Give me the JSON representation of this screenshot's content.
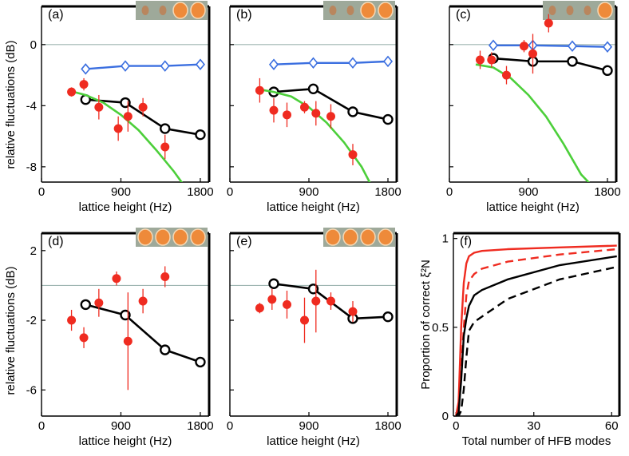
{
  "figure": {
    "ylabel_top": "relative fluctuations (dB)",
    "ylabel_bottom": "relative fluctuations (dB)"
  },
  "chart_data": [
    {
      "id": "a",
      "panel_label": "(a)",
      "type": "line",
      "xlabel": "lattice height (Hz)",
      "ylabel": "relative fluctuations (dB)",
      "xlim": [
        0,
        1900
      ],
      "ylim": [
        -9,
        2.5
      ],
      "xticks": [
        0,
        900,
        1800
      ],
      "xtick_labels": [
        "0",
        "900",
        "1800"
      ],
      "yticks": [
        0,
        -4,
        -8
      ],
      "ytick_labels": [
        "0",
        "-4",
        "-8"
      ],
      "zero_line": true,
      "inset": {
        "lobes": 4,
        "bright": [
          2,
          3
        ]
      },
      "series": [
        {
          "name": "blue diamonds",
          "color": "#3b6fe0",
          "marker": "diamond",
          "x": [
            500,
            950,
            1400,
            1800
          ],
          "y": [
            -1.6,
            -1.4,
            -1.4,
            -1.3
          ]
        },
        {
          "name": "black circles",
          "color": "#000000",
          "marker": "circle",
          "x": [
            500,
            950,
            1400,
            1800
          ],
          "y": [
            -3.6,
            -3.8,
            -5.5,
            -5.9
          ]
        },
        {
          "name": "green curve",
          "color": "#4ccf3a",
          "marker": "none",
          "x": [
            300,
            500,
            700,
            900,
            1100,
            1300,
            1500,
            1600
          ],
          "y": [
            -3.0,
            -3.3,
            -3.8,
            -4.6,
            -5.6,
            -6.9,
            -8.3,
            -9.1
          ]
        },
        {
          "name": "red data",
          "color": "#ef2b20",
          "marker": "errorbar",
          "x": [
            340,
            480,
            650,
            870,
            980,
            1150,
            1400
          ],
          "y": [
            -3.1,
            -2.6,
            -4.1,
            -5.5,
            -4.7,
            -4.1,
            -6.7
          ],
          "yerr": [
            0.3,
            0.4,
            0.8,
            0.8,
            1.0,
            0.6,
            0.8
          ]
        }
      ]
    },
    {
      "id": "b",
      "panel_label": "(b)",
      "type": "line",
      "xlabel": "lattice height (Hz)",
      "ylabel": "",
      "xlim": [
        0,
        1900
      ],
      "ylim": [
        -9,
        2.5
      ],
      "xticks": [
        0,
        900,
        1800
      ],
      "xtick_labels": [
        "0",
        "900",
        "1800"
      ],
      "yticks": [
        0,
        -4,
        -8
      ],
      "ytick_labels": [
        "",
        "",
        ""
      ],
      "zero_line": true,
      "inset": {
        "lobes": 4,
        "bright": [
          2,
          3
        ]
      },
      "series": [
        {
          "name": "blue diamonds",
          "color": "#3b6fe0",
          "marker": "diamond",
          "x": [
            500,
            950,
            1400,
            1800
          ],
          "y": [
            -1.3,
            -1.2,
            -1.2,
            -1.1
          ]
        },
        {
          "name": "black circles",
          "color": "#000000",
          "marker": "circle",
          "x": [
            500,
            950,
            1400,
            1800
          ],
          "y": [
            -3.1,
            -2.9,
            -4.4,
            -4.9
          ]
        },
        {
          "name": "green curve",
          "color": "#4ccf3a",
          "marker": "none",
          "x": [
            300,
            500,
            700,
            900,
            1100,
            1300,
            1500,
            1600
          ],
          "y": [
            -2.9,
            -3.1,
            -3.4,
            -4.1,
            -5.1,
            -6.4,
            -8.0,
            -9.1
          ]
        },
        {
          "name": "red data",
          "color": "#ef2b20",
          "marker": "errorbar",
          "x": [
            340,
            500,
            650,
            850,
            980,
            1150,
            1400
          ],
          "y": [
            -3.0,
            -4.3,
            -4.6,
            -4.1,
            -4.5,
            -4.7,
            -7.2
          ],
          "yerr": [
            0.8,
            0.8,
            0.8,
            0.4,
            0.8,
            0.8,
            0.7
          ]
        }
      ]
    },
    {
      "id": "c",
      "panel_label": "(c)",
      "type": "line",
      "xlabel": "lattice height (Hz)",
      "ylabel": "",
      "xlim": [
        0,
        1900
      ],
      "ylim": [
        -9,
        2.5
      ],
      "xticks": [
        0,
        900,
        1800
      ],
      "xtick_labels": [
        "0",
        "900",
        "1800"
      ],
      "yticks": [
        0,
        -4,
        -8
      ],
      "ytick_labels": [
        "",
        "",
        ""
      ],
      "zero_line": true,
      "inset": {
        "lobes": 4,
        "bright": [
          3
        ]
      },
      "series": [
        {
          "name": "blue diamonds",
          "color": "#3b6fe0",
          "marker": "diamond",
          "x": [
            500,
            950,
            1400,
            1800
          ],
          "y": [
            -0.05,
            -0.05,
            -0.1,
            -0.15
          ]
        },
        {
          "name": "black circles",
          "color": "#000000",
          "marker": "circle",
          "x": [
            500,
            950,
            1400,
            1800
          ],
          "y": [
            -0.9,
            -1.1,
            -1.1,
            -1.7
          ]
        },
        {
          "name": "green curve",
          "color": "#4ccf3a",
          "marker": "none",
          "x": [
            300,
            500,
            700,
            900,
            1100,
            1300,
            1500,
            1600
          ],
          "y": [
            -1.3,
            -1.5,
            -2.2,
            -3.3,
            -4.7,
            -6.5,
            -8.5,
            -9.1
          ]
        },
        {
          "name": "red data",
          "color": "#ef2b20",
          "marker": "errorbar",
          "x": [
            350,
            480,
            650,
            850,
            950,
            1130
          ],
          "y": [
            -1.0,
            -1.0,
            -2.0,
            -0.1,
            -0.6,
            1.4
          ],
          "yerr": [
            0.6,
            0.5,
            0.6,
            0.4,
            1.3,
            0.6
          ]
        }
      ]
    },
    {
      "id": "d",
      "panel_label": "(d)",
      "type": "line",
      "xlabel": "lattice height (Hz)",
      "ylabel": "relative fluctuations (dB)",
      "xlim": [
        0,
        1900
      ],
      "ylim": [
        -7.5,
        3
      ],
      "xticks": [
        0,
        900,
        1800
      ],
      "xtick_labels": [
        "0",
        "900",
        "1800"
      ],
      "yticks": [
        2,
        -2,
        -6
      ],
      "ytick_labels": [
        "2",
        "-2",
        "-6"
      ],
      "zero_line": true,
      "inset": {
        "lobes": 4,
        "bright": [
          0,
          1,
          2,
          3
        ]
      },
      "series": [
        {
          "name": "black circles",
          "color": "#000000",
          "marker": "circle",
          "x": [
            500,
            950,
            1400,
            1800
          ],
          "y": [
            -1.1,
            -1.7,
            -3.7,
            -4.4
          ]
        },
        {
          "name": "red data",
          "color": "#ef2b20",
          "marker": "errorbar",
          "x": [
            340,
            480,
            650,
            850,
            980,
            1150,
            1400
          ],
          "y": [
            -2.0,
            -3.0,
            -1.0,
            0.4,
            -3.2,
            -0.9,
            0.5
          ],
          "yerr": [
            0.6,
            0.6,
            0.8,
            0.4,
            2.8,
            0.7,
            0.6
          ]
        }
      ]
    },
    {
      "id": "e",
      "panel_label": "(e)",
      "type": "line",
      "xlabel": "lattice height (Hz)",
      "ylabel": "",
      "xlim": [
        0,
        1900
      ],
      "ylim": [
        -7.5,
        3
      ],
      "xticks": [
        0,
        900,
        1800
      ],
      "xtick_labels": [
        "0",
        "900",
        "1800"
      ],
      "yticks": [
        2,
        -2,
        -6
      ],
      "ytick_labels": [
        "",
        "",
        ""
      ],
      "zero_line": true,
      "inset": {
        "lobes": 4,
        "bright": [
          0,
          1,
          2,
          3
        ]
      },
      "series": [
        {
          "name": "black circles",
          "color": "#000000",
          "marker": "circle",
          "x": [
            500,
            950,
            1400,
            1800
          ],
          "y": [
            0.1,
            -0.2,
            -1.9,
            -1.8
          ]
        },
        {
          "name": "red data",
          "color": "#ef2b20",
          "marker": "errorbar",
          "x": [
            340,
            480,
            650,
            850,
            980,
            1150,
            1400
          ],
          "y": [
            -1.3,
            -0.8,
            -1.1,
            -2.0,
            -0.9,
            -0.9,
            -1.5
          ],
          "yerr": [
            0.3,
            0.6,
            0.8,
            1.3,
            1.8,
            0.5,
            0.6
          ]
        }
      ]
    },
    {
      "id": "f",
      "panel_label": "(f)",
      "type": "line",
      "xlabel": "Total number of HFB modes",
      "ylabel": "Proportion of correct ξ²N",
      "xlim": [
        -1,
        63
      ],
      "ylim": [
        0,
        1.03
      ],
      "xticks": [
        0,
        30,
        60
      ],
      "xtick_labels": [
        "0",
        "30",
        "60"
      ],
      "yticks": [
        0,
        0.5,
        1
      ],
      "ytick_labels": [
        "0",
        "0.5",
        "1"
      ],
      "zero_line": false,
      "series": [
        {
          "name": "red solid",
          "color": "#ef2b20",
          "dash": false,
          "x": [
            0,
            1,
            2,
            3,
            4,
            5,
            7,
            10,
            20,
            40,
            62
          ],
          "y": [
            0,
            0.08,
            0.5,
            0.75,
            0.86,
            0.9,
            0.92,
            0.93,
            0.94,
            0.95,
            0.96
          ]
        },
        {
          "name": "red dashed",
          "color": "#ef2b20",
          "dash": true,
          "x": [
            0,
            1,
            2,
            3,
            4,
            5,
            7,
            10,
            20,
            40,
            62
          ],
          "y": [
            0,
            0.02,
            0.25,
            0.5,
            0.68,
            0.76,
            0.8,
            0.83,
            0.87,
            0.91,
            0.94
          ]
        },
        {
          "name": "black solid",
          "color": "#000000",
          "dash": false,
          "x": [
            0,
            1,
            2,
            3,
            4,
            5,
            7,
            10,
            20,
            40,
            62
          ],
          "y": [
            0,
            0.02,
            0.2,
            0.45,
            0.55,
            0.62,
            0.68,
            0.71,
            0.77,
            0.85,
            0.9
          ]
        },
        {
          "name": "black dashed",
          "color": "#000000",
          "dash": true,
          "x": [
            0,
            1,
            2,
            3,
            4,
            5,
            7,
            10,
            20,
            40,
            62
          ],
          "y": [
            0,
            0.0,
            0.03,
            0.15,
            0.33,
            0.48,
            0.53,
            0.56,
            0.66,
            0.77,
            0.84
          ]
        }
      ]
    }
  ]
}
